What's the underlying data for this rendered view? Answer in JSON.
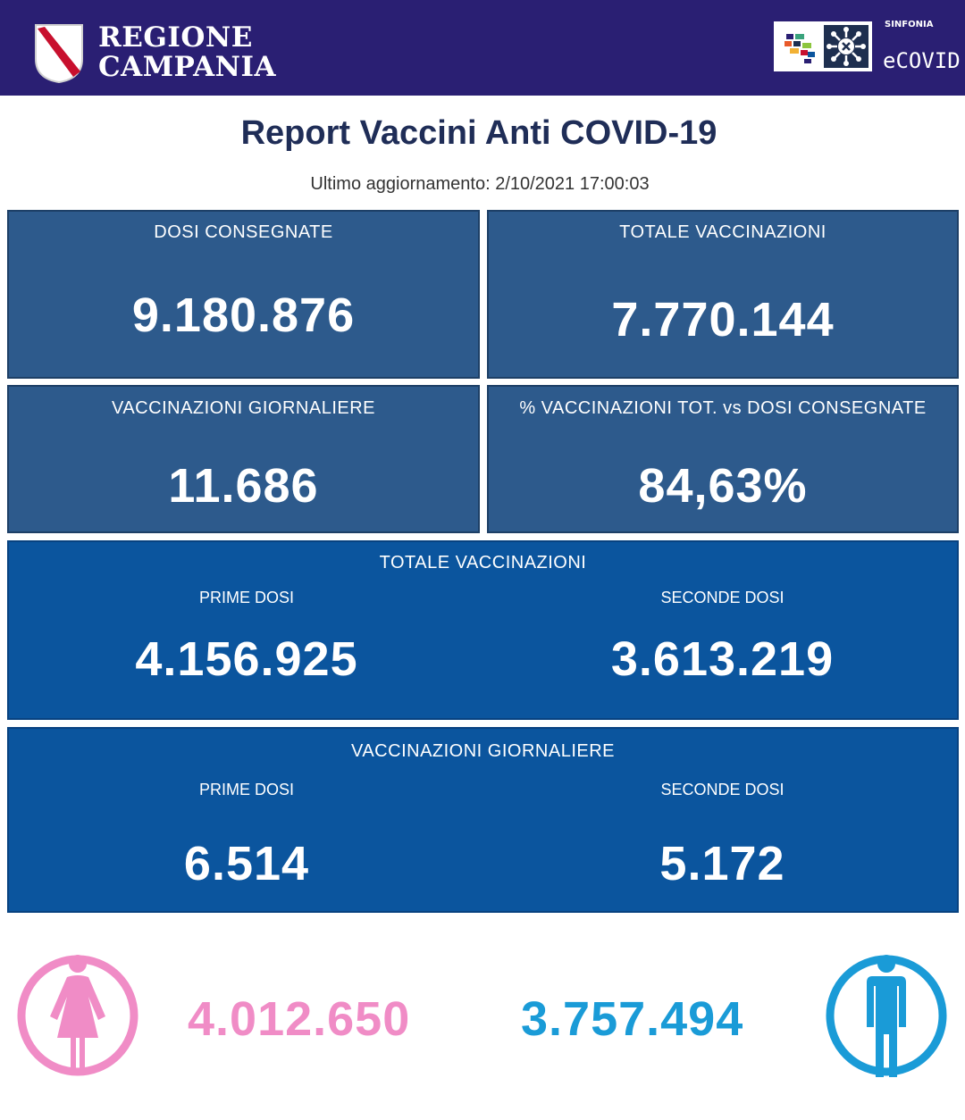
{
  "header": {
    "region_line1": "REGIONE",
    "region_line2": "CAMPANIA",
    "sinfonia_label": "SINFONIA",
    "ecovid_label": "eCOVID",
    "brand_color": "#2a1f73"
  },
  "title": "Report Vaccini Anti COVID-19",
  "updated": "Ultimo aggiornamento: 2/10/2021  17:00:03",
  "cards": {
    "dosi_consegnate": {
      "label": "DOSI  CONSEGNATE",
      "value": "9.180.876"
    },
    "totale_vaccinazioni": {
      "label": "TOTALE VACCINAZIONI",
      "value": "7.770.144"
    },
    "vaccinazioni_giornaliere": {
      "label": "VACCINAZIONI GIORNALIERE",
      "value": "11.686"
    },
    "percentuale": {
      "label": "% VACCINAZIONI TOT. vs DOSI CONSEGNATE",
      "value": "84,63%"
    }
  },
  "totale_panel": {
    "label": "TOTALE VACCINAZIONI",
    "prime_label": "PRIME DOSI",
    "prime_value": "4.156.925",
    "seconde_label": "SECONDE DOSI",
    "seconde_value": "3.613.219"
  },
  "giornaliere_panel": {
    "label": "VACCINAZIONI GIORNALIERE",
    "prime_label": "PRIME DOSI",
    "prime_value": "6.514",
    "seconde_label": "SECONDE DOSI",
    "seconde_value": "5.172"
  },
  "gender": {
    "female_value": "4.012.650",
    "male_value": "3.757.494",
    "female_color": "#f08cc6",
    "male_color": "#1a9bd7",
    "female_icon": "female-icon",
    "male_icon": "male-icon"
  }
}
